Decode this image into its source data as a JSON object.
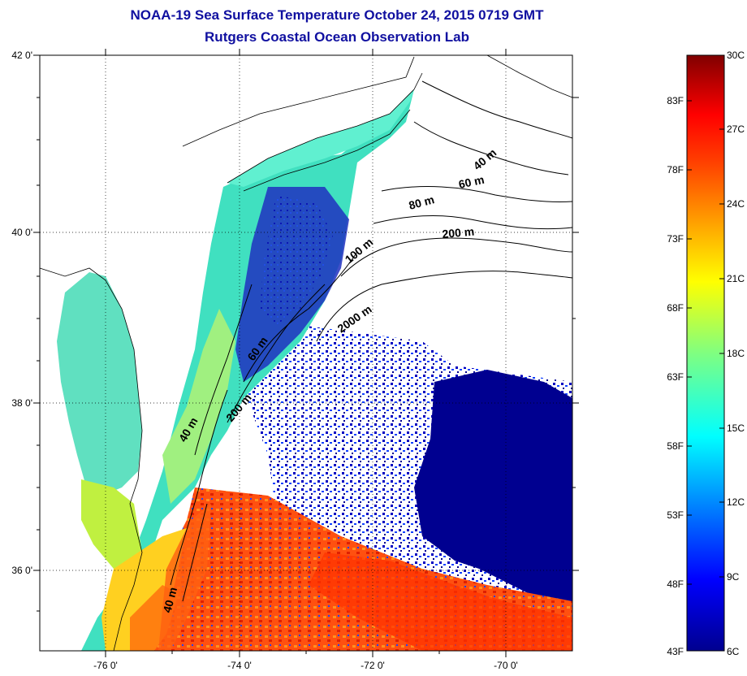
{
  "header": {
    "title": "NOAA-19 Sea Surface Temperature October 24, 2015 0719 GMT",
    "subtitle": "Rutgers Coastal Ocean Observation Lab"
  },
  "map": {
    "lat_labels": [
      "42 0'",
      "40 0'",
      "38 0'",
      "36 0'"
    ],
    "lon_labels": [
      "-76 0'",
      "-74 0'",
      "-72 0'",
      "-70 0'"
    ],
    "lat_range": [
      35,
      42
    ],
    "lon_range": [
      -77,
      -69
    ],
    "isobath_labels": [
      "40 m",
      "60 m",
      "80 m",
      "200 m",
      "100 m",
      "2000 m",
      "60 m",
      "200 m",
      "40 m",
      "40 m"
    ]
  },
  "colorbar": {
    "celsius": [
      "30C",
      "27C",
      "24C",
      "21C",
      "18C",
      "15C",
      "12C",
      "9C",
      "6C"
    ],
    "fahrenheit": [
      "83F",
      "78F",
      "73F",
      "68F",
      "63F",
      "58F",
      "53F",
      "48F",
      "43F"
    ],
    "range_c": [
      6,
      30
    ],
    "colors": [
      "#00008f",
      "#0000ff",
      "#0080ff",
      "#00ffff",
      "#80ff80",
      "#ffff00",
      "#ff8000",
      "#ff0000",
      "#800000"
    ]
  }
}
